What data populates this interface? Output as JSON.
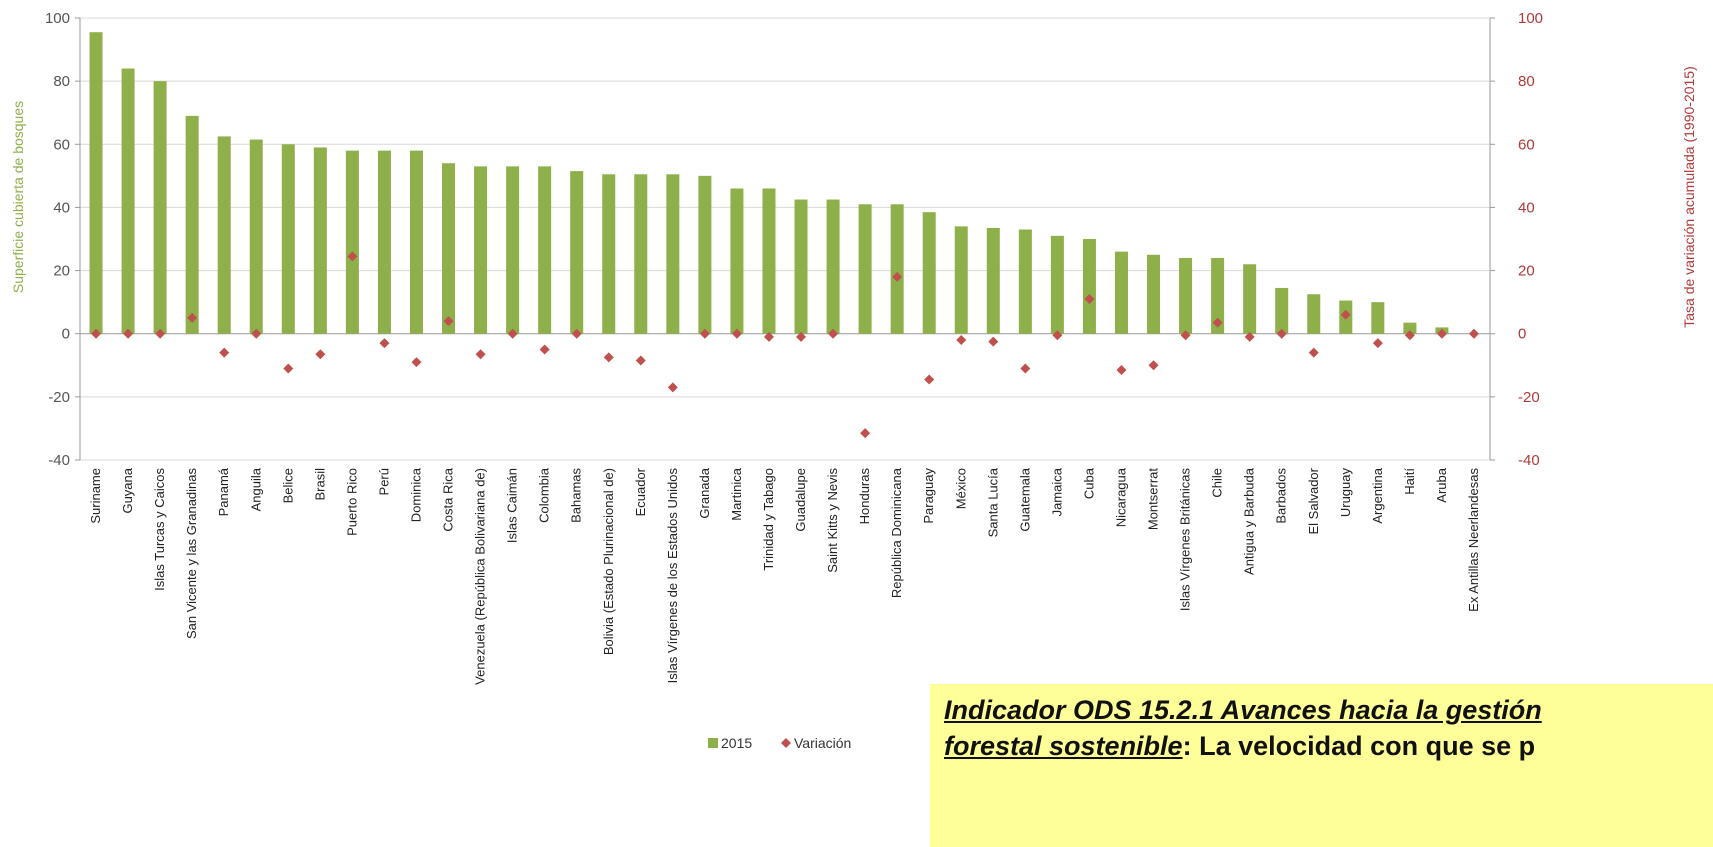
{
  "chart_data": {
    "type": "bar",
    "title": "",
    "ylabel_left": "Superficie cubierta de bosques",
    "ylabel_right": "Tasa de variación acumulada (1990-2015)",
    "ylim": [
      -40,
      100
    ],
    "yticks": [
      -40,
      -20,
      0,
      20,
      40,
      60,
      80,
      100
    ],
    "categories": [
      "Suriname",
      "Guyana",
      "Islas Turcas y Caicos",
      "San Vicente y las Granadinas",
      "Panamá",
      "Anguila",
      "Belice",
      "Brasil",
      "Puerto Rico",
      "Perú",
      "Dominica",
      "Costa Rica",
      "Venezuela (República Bolivariana de)",
      "Islas Caimán",
      "Colombia",
      "Bahamas",
      "Bolivia (Estado Plurinacional de)",
      "Ecuador",
      "Islas Vírgenes de los Estados Unidos",
      "Granada",
      "Martinica",
      "Trinidad y Tabago",
      "Guadalupe",
      "Saint Kitts y Nevis",
      "Honduras",
      "República Dominicana",
      "Paraguay",
      "México",
      "Santa Lucía",
      "Guatemala",
      "Jamaica",
      "Cuba",
      "Nicaragua",
      "Montserrat",
      "Islas Vírgenes Británicas",
      "Chile",
      "Antigua y Barbuda",
      "Barbados",
      "El Salvador",
      "Uruguay",
      "Argentina",
      "Haití",
      "Aruba",
      "Ex Antillas Neerlandesas"
    ],
    "series": [
      {
        "name": "2015",
        "kind": "bar",
        "color": "#8db04a",
        "values": [
          95.5,
          84,
          80,
          69,
          62.5,
          61.5,
          60,
          59,
          58,
          58,
          58,
          54,
          53,
          53,
          53,
          51.5,
          50.5,
          50.5,
          50.5,
          50,
          46,
          46,
          42.5,
          42.5,
          41,
          41,
          38.5,
          34,
          33.5,
          33,
          31,
          30,
          26,
          25,
          24,
          24,
          22,
          14.5,
          12.5,
          10.5,
          10,
          3.5,
          2,
          0
        ]
      },
      {
        "name": "Variación",
        "kind": "scatter",
        "color": "#c0504d",
        "values": [
          0,
          0,
          0,
          5,
          -6,
          0,
          -11,
          -6.5,
          24.5,
          -3,
          -9,
          4,
          -6.5,
          0,
          -5,
          0,
          -7.5,
          -8.5,
          -17,
          0,
          0,
          -1,
          -1,
          0,
          -31.5,
          18,
          -14.5,
          -2,
          -2.5,
          -11,
          -0.5,
          11,
          -11.5,
          -10,
          -0.5,
          3.5,
          -1,
          0,
          -6,
          6,
          -3,
          -0.5,
          0,
          0
        ]
      }
    ],
    "legend_position": "bottom",
    "grid": true
  },
  "callout": {
    "title": "Indicador ODS 15.2.1 Avances hacia la gestión",
    "title2": "forestal sostenible",
    "text": ": La velocidad con que se p"
  },
  "colors": {
    "bar": "#8db04a",
    "marker": "#c0504d",
    "right_axis": "#b03a3a",
    "callout_bg": "#ffff99"
  }
}
